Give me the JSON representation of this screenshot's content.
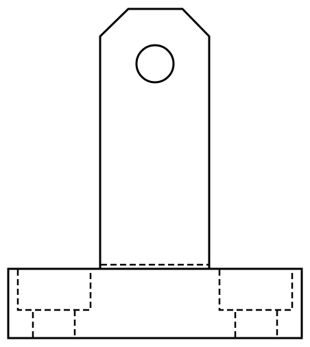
{
  "drawing": {
    "kind": "orthographic-front-view",
    "features": [
      "base-plate",
      "upright-tab",
      "chamfered-top",
      "through-hole",
      "counterbored-holes-hidden"
    ],
    "line_color": "#000000",
    "background_color": "#ffffff"
  }
}
